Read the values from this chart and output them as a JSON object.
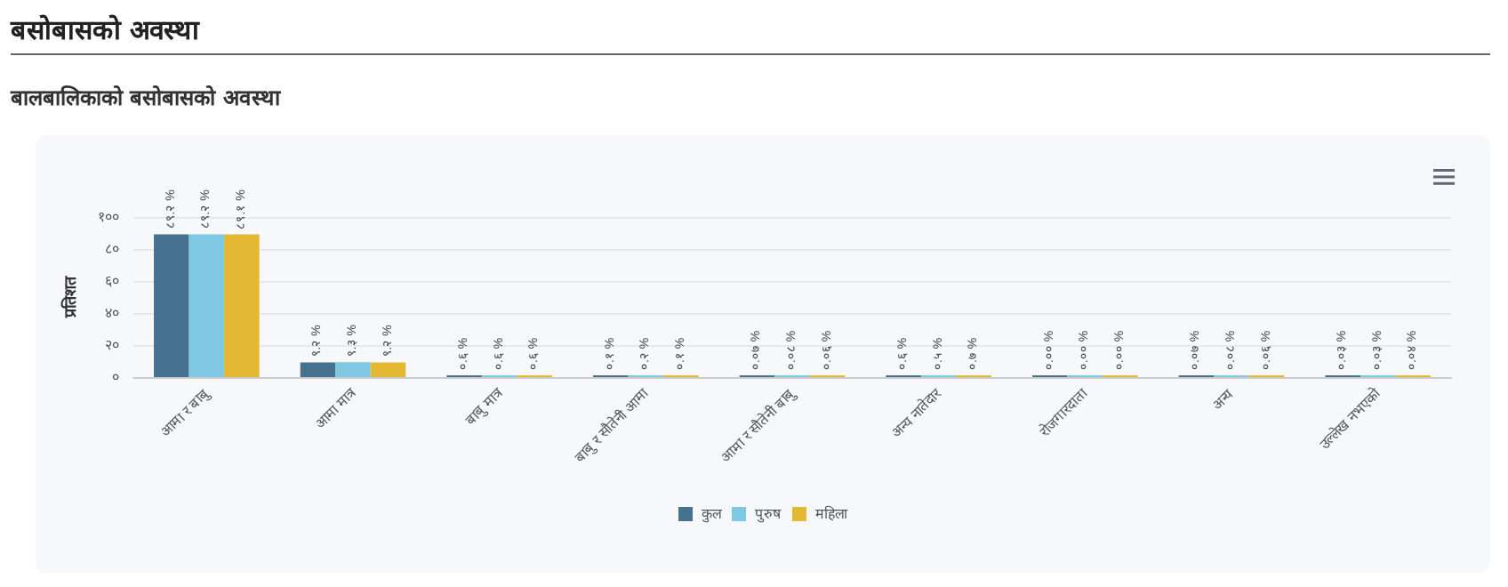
{
  "chart_data": {
    "type": "bar",
    "title": "बसोबासको अवस्था",
    "subtitle": "बालबालिकाको बसोबासको अवस्था",
    "ylabel": "प्रतिशत",
    "categories": [
      "आमा र बाबु",
      "आमा मात्र",
      "बाबु मात्र",
      "बाबु र सौतेनी आमा",
      "आमा र सौतेनी बाबु",
      "अन्य नातेदार",
      "रोजगारदाता",
      "अन्य",
      "उल्लेख नभएको"
    ],
    "series": [
      {
        "name": "कुल",
        "color": "#46728f",
        "values": [
          89.2,
          9.2,
          0.6,
          0.1,
          0.07,
          0.6,
          0.0,
          0.07,
          0.03
        ],
        "value_labels": [
          "८९.२ %",
          "९.२ %",
          "०.६ %",
          "०.१ %",
          "०.०७ %",
          "०.६ %",
          "०.०० %",
          "०.०७ %",
          "०.०३ %"
        ]
      },
      {
        "name": "पुरुष",
        "color": "#7ec8e3",
        "values": [
          89.2,
          9.3,
          0.6,
          0.2,
          0.08,
          0.5,
          0.0,
          0.08,
          0.03
        ],
        "value_labels": [
          "८९.२ %",
          "९.३ %",
          "०.६ %",
          "०.२ %",
          "०.०८ %",
          "०.५ %",
          "०.०० %",
          "०.०८ %",
          "०.०३ %"
        ]
      },
      {
        "name": "महिला",
        "color": "#e3b832",
        "values": [
          89.1,
          9.2,
          0.6,
          0.1,
          0.06,
          0.7,
          0.0,
          0.06,
          0.04
        ],
        "value_labels": [
          "८९.१ %",
          "९.२ %",
          "०.६ %",
          "०.१ %",
          "०.०६ %",
          "०.७ %",
          "०.०० %",
          "०.०६ %",
          "०.०४ %"
        ]
      }
    ],
    "ylim": [
      0,
      100
    ],
    "yticks": [
      {
        "value": 0,
        "label": "०"
      },
      {
        "value": 20,
        "label": "२०"
      },
      {
        "value": 40,
        "label": "४०"
      },
      {
        "value": 60,
        "label": "६०"
      },
      {
        "value": 80,
        "label": "८०"
      },
      {
        "value": 100,
        "label": "१००"
      }
    ],
    "grid": "y",
    "legend": "bottom"
  }
}
